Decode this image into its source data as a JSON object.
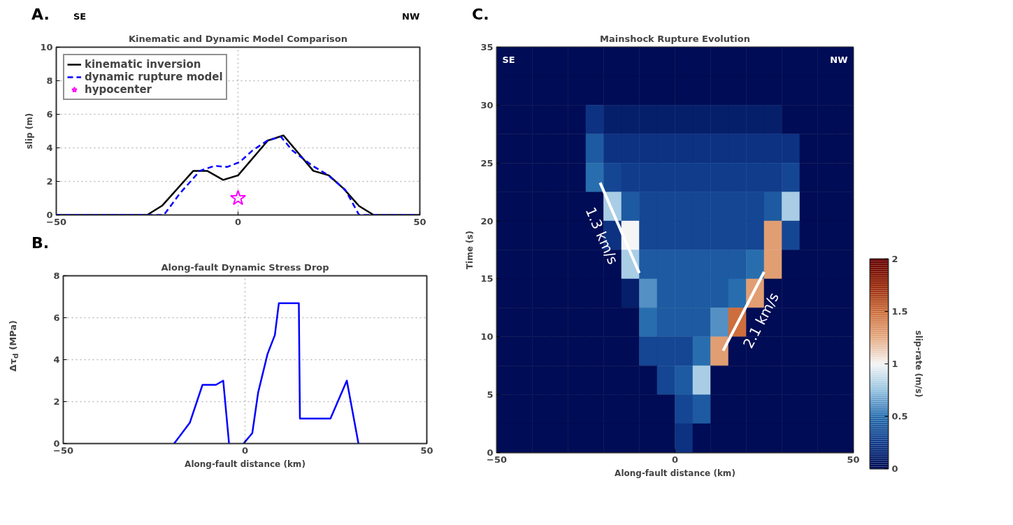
{
  "chart_data": [
    {
      "type": "line",
      "title": "Kinematic and Dynamic Model Comparison",
      "ylabel": "slip (m)",
      "annotations": [
        "A.",
        "SE",
        "NW"
      ],
      "xlim": [
        -50,
        50
      ],
      "xticks": [
        -50,
        0,
        50
      ],
      "ylim": [
        0,
        10
      ],
      "yticks": [
        0,
        2,
        4,
        6,
        8,
        10
      ],
      "grid": true,
      "legend": "top left",
      "series": [
        {
          "name": "kinematic inversion",
          "color": "#000000",
          "line_style": "solid",
          "x": [
            -50,
            -25,
            -20.9,
            -12.3,
            -8.5,
            -4.1,
            0,
            8.2,
            12.5,
            20.7,
            25,
            29,
            33.3,
            37.3,
            50
          ],
          "values": [
            0,
            0,
            0.55,
            2.63,
            2.63,
            2.09,
            2.36,
            4.44,
            4.74,
            2.63,
            2.36,
            1.58,
            0.53,
            0,
            0
          ]
        },
        {
          "name": "dynamic rupture model",
          "color": "#0000ff",
          "line_style": "dashed",
          "x": [
            -50,
            -20.4,
            -16,
            -10.5,
            -6.4,
            -3,
            0.5,
            3.9,
            8.1,
            11.8,
            15,
            20.5,
            24.6,
            29.5,
            33.3,
            50
          ],
          "values": [
            0,
            0,
            1.28,
            2.63,
            2.93,
            2.86,
            3.16,
            3.83,
            4.44,
            4.66,
            3.83,
            2.93,
            2.4,
            1.5,
            0,
            0
          ]
        },
        {
          "name": "hypocenter",
          "type": "scatter",
          "marker": "star",
          "color": "#ff00ff",
          "x": [
            0
          ],
          "values": [
            1
          ]
        }
      ]
    },
    {
      "type": "line",
      "title": "Along-fault Dynamic Stress Drop",
      "ylabel": "Δτ$_{d}$ (MPa)",
      "xlabel": "Along-fault distance (km)",
      "annotations": [
        "B."
      ],
      "xlim": [
        -50,
        50
      ],
      "xticks": [
        -50,
        0,
        50
      ],
      "ylim": [
        0,
        8
      ],
      "yticks": [
        0,
        2,
        4,
        6,
        8
      ],
      "grid": true,
      "series": [
        {
          "color": "#0000ff",
          "line_style": "solid",
          "x": [
            -19.5,
            -15.2,
            -11.7,
            -8,
            -6,
            -4.4,
            -2.4,
            -0.4,
            2,
            3.6,
            6.2,
            8.2,
            9.3,
            14.8,
            15.1,
            23.5,
            28,
            31.2
          ],
          "values": [
            0,
            0.99,
            2.8,
            2.8,
            3.0,
            0,
            null,
            0,
            0.5,
            2.43,
            4.28,
            5.17,
            6.69,
            6.69,
            1.19,
            1.19,
            3.0,
            0
          ]
        }
      ]
    },
    {
      "type": "heatmap",
      "title": "Mainshock Rupture Evolution",
      "xlabel": "Along-fault distance (km)",
      "ylabel": "Time (s)",
      "clabel": "slip-rate (m/s)",
      "annotations": [
        "C.",
        "SE",
        "NW"
      ],
      "xlim": [
        -50,
        50
      ],
      "xticks": [
        -50,
        0,
        50
      ],
      "ylim": [
        0,
        35
      ],
      "yticks": [
        0,
        5,
        10,
        15,
        20,
        25,
        30,
        35
      ],
      "clim": [
        0,
        2
      ],
      "cticks": [
        0,
        0.5,
        1,
        1.5,
        2
      ],
      "x": [
        -47.5,
        -42.5,
        -37.5,
        -32.5,
        -27.5,
        -22.5,
        -17.5,
        -12.5,
        -7.5,
        -2.5,
        2.5,
        7.5,
        12.5,
        17.5,
        22.5,
        27.5,
        32.5,
        37.5,
        42.5,
        47.5
      ],
      "y": [
        33.75,
        31.25,
        28.75,
        26.25,
        23.75,
        21.25,
        18.75,
        16.25,
        13.75,
        11.25,
        8.75,
        6.25,
        3.75,
        1.25
      ],
      "cells": [
        [
          0,
          0,
          0,
          0,
          0,
          0,
          0,
          0,
          0,
          0,
          0,
          0,
          0,
          0,
          0,
          0,
          0,
          0,
          0,
          0
        ],
        [
          0,
          0,
          0,
          0,
          0,
          0,
          0,
          0,
          0,
          0,
          0,
          0,
          0,
          0,
          0,
          0,
          0,
          0,
          0,
          0
        ],
        [
          0,
          0,
          0,
          0,
          0,
          0.2,
          0.1,
          0.1,
          0.1,
          0.1,
          0.1,
          0.1,
          0.1,
          0.1,
          0.1,
          0.1,
          0,
          0,
          0,
          0
        ],
        [
          0,
          0,
          0,
          0,
          0,
          0.4,
          0.2,
          0.2,
          0.2,
          0.2,
          0.2,
          0.2,
          0.2,
          0.2,
          0.2,
          0.2,
          0.2,
          0,
          0,
          0
        ],
        [
          0,
          0,
          0,
          0,
          0,
          0.5,
          0.3,
          0.25,
          0.25,
          0.25,
          0.25,
          0.25,
          0.25,
          0.25,
          0.25,
          0.25,
          0.3,
          0,
          0,
          0
        ],
        [
          0,
          0,
          0,
          0,
          0,
          0,
          0.8,
          0.4,
          0.3,
          0.3,
          0.3,
          0.3,
          0.3,
          0.3,
          0.3,
          0.4,
          0.8,
          0,
          0,
          0
        ],
        [
          0,
          0,
          0,
          0,
          0,
          0,
          0.2,
          1.0,
          0.3,
          0.3,
          0.3,
          0.3,
          0.3,
          0.3,
          0.3,
          1.3,
          0.3,
          0,
          0,
          0
        ],
        [
          0,
          0,
          0,
          0,
          0,
          0,
          0,
          0.8,
          0.4,
          0.4,
          0.4,
          0.4,
          0.4,
          0.4,
          0.5,
          1.3,
          0,
          0,
          0,
          0
        ],
        [
          0,
          0,
          0,
          0,
          0,
          0,
          0,
          0.1,
          0.6,
          0.4,
          0.4,
          0.4,
          0.4,
          0.5,
          1.3,
          0,
          0,
          0,
          0,
          0
        ],
        [
          0,
          0,
          0,
          0,
          0,
          0,
          0,
          0,
          0.5,
          0.4,
          0.4,
          0.4,
          0.6,
          1.5,
          0,
          0,
          0,
          0,
          0,
          0
        ],
        [
          0,
          0,
          0,
          0,
          0,
          0,
          0,
          0,
          0.3,
          0.3,
          0.3,
          0.5,
          1.3,
          0,
          0,
          0,
          0,
          0,
          0,
          0
        ],
        [
          0,
          0,
          0,
          0,
          0,
          0,
          0,
          0,
          0,
          0.3,
          0.4,
          0.8,
          0,
          0,
          0,
          0,
          0,
          0,
          0,
          0
        ],
        [
          0,
          0,
          0,
          0,
          0,
          0,
          0,
          0,
          0,
          0,
          0.3,
          0.4,
          0,
          0,
          0,
          0,
          0,
          0,
          0,
          0
        ],
        [
          0,
          0,
          0,
          0,
          0,
          0,
          0,
          0,
          0,
          0,
          0.2,
          0,
          0,
          0,
          0,
          0,
          0,
          0,
          0,
          0
        ]
      ],
      "series": [
        {
          "name": "1.3 km/s",
          "type": "line",
          "color": "#ffffff",
          "x": [
            -21,
            -10
          ],
          "values": [
            23.3,
            15.5
          ]
        },
        {
          "name": "2.1 km/s",
          "type": "line",
          "color": "#ffffff",
          "x": [
            13.5,
            25
          ],
          "values": [
            8.8,
            15.6
          ]
        }
      ]
    }
  ]
}
